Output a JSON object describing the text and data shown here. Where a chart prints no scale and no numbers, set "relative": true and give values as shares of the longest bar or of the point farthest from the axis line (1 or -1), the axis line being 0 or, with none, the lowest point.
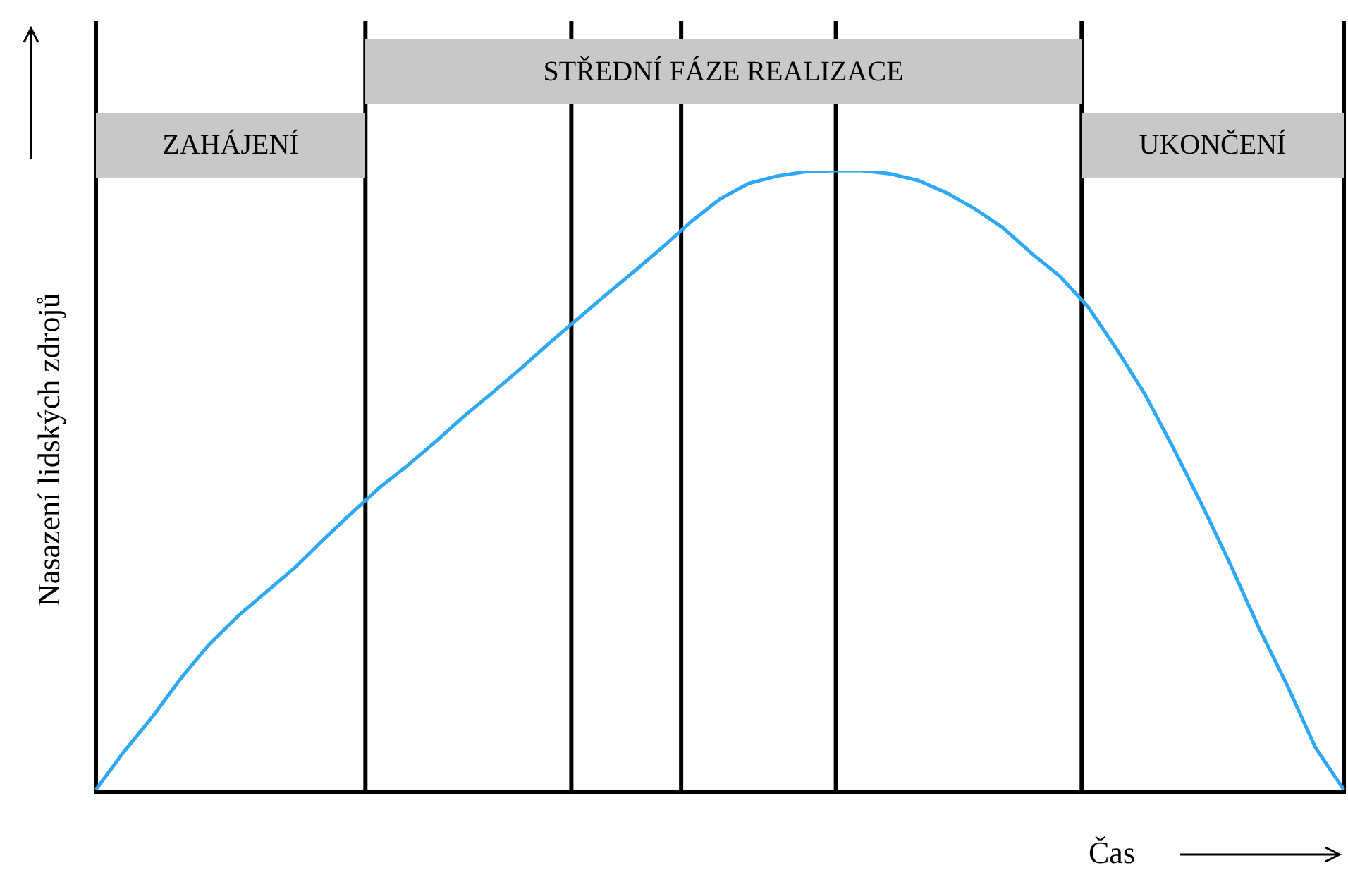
{
  "chart_data": {
    "type": "line",
    "relative": true,
    "xlabel": "Čas",
    "ylabel": "Nasazení lidských zdrojů",
    "legend": false,
    "marker": "none",
    "line_style": "solid",
    "annotations": [
      "ZAHÁJENÍ",
      "STŘEDNÍ FÁZE REALIZACE",
      "UKONČENÍ"
    ],
    "categories": [
      null,
      null,
      null,
      null,
      null,
      null,
      null,
      null,
      null,
      null,
      null,
      null,
      null,
      null,
      null,
      null,
      null,
      null,
      null,
      null,
      null,
      null,
      null,
      null,
      null,
      null,
      null,
      null,
      null,
      null,
      null,
      null,
      null,
      null,
      null,
      null,
      null,
      null,
      null,
      null,
      null,
      null,
      null,
      null,
      null
    ],
    "series": [
      {
        "color": "#2ea7f5",
        "values": [
          0,
          0.062,
          0.118,
          0.18,
          0.235,
          0.28,
          0.319,
          0.358,
          0.403,
          0.446,
          0.488,
          0.524,
          0.563,
          0.604,
          0.642,
          0.681,
          0.722,
          0.761,
          0.8,
          0.838,
          0.877,
          0.918,
          0.954,
          0.979,
          0.991,
          0.998,
          1.0,
          1.0,
          0.995,
          0.984,
          0.964,
          0.938,
          0.907,
          0.866,
          0.829,
          0.779,
          0.711,
          0.638,
          0.551,
          0.46,
          0.364,
          0.262,
          0.169,
          0.068,
          0
        ]
      }
    ]
  }
}
